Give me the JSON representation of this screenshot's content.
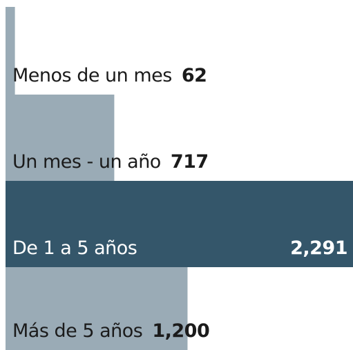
{
  "chart_data": {
    "type": "bar",
    "orientation": "horizontal",
    "categories": [
      "Menos de un mes",
      "Un mes - un año",
      "De 1 a 5 años",
      "Más de 5 años"
    ],
    "values": [
      62,
      717,
      2291,
      1200
    ],
    "value_labels": [
      "62",
      "717",
      "2,291",
      "1,200"
    ],
    "color": "#9aabb6",
    "highlight_color": "#34566a",
    "highlight": 2
  }
}
